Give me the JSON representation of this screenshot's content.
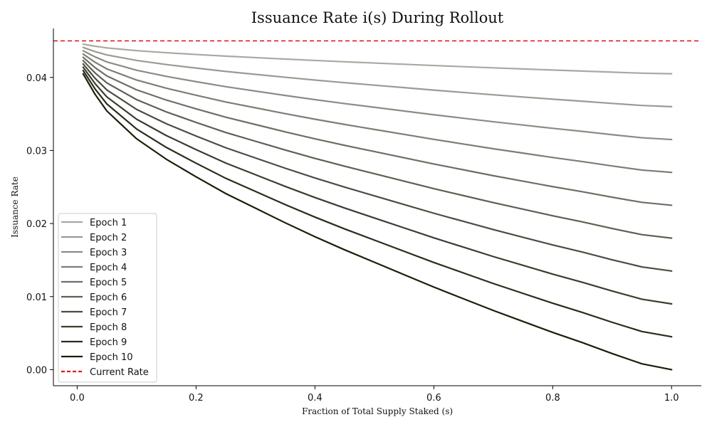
{
  "chart_data": {
    "type": "line",
    "title": "Issuance Rate i(s) During Rollout",
    "xlabel": "Fraction of Total Supply Staked (s)",
    "ylabel": "Issuance Rate",
    "xlim": [
      -0.04,
      1.05
    ],
    "ylim": [
      -0.0022,
      0.0467
    ],
    "x_ticks": [
      0.0,
      0.2,
      0.4,
      0.6,
      0.8,
      1.0
    ],
    "x_tick_labels": [
      "0.0",
      "0.2",
      "0.4",
      "0.6",
      "0.8",
      "1.0"
    ],
    "y_ticks": [
      0.0,
      0.01,
      0.02,
      0.03,
      0.04
    ],
    "y_tick_labels": [
      "0.00",
      "0.01",
      "0.02",
      "0.03",
      "0.04"
    ],
    "grid": false,
    "legend_position": "lower-left",
    "x": [
      0.01,
      0.03,
      0.05,
      0.075,
      0.1,
      0.15,
      0.2,
      0.25,
      0.3,
      0.35,
      0.4,
      0.45,
      0.5,
      0.55,
      0.6,
      0.65,
      0.7,
      0.75,
      0.8,
      0.85,
      0.9,
      0.95,
      1.0
    ],
    "series": [
      {
        "name": "Epoch 1",
        "color": "#a9a9a1",
        "values": [
          0.04455,
          0.04427,
          0.04404,
          0.04385,
          0.04366,
          0.04338,
          0.04314,
          0.04291,
          0.04271,
          0.04251,
          0.04232,
          0.04214,
          0.04197,
          0.0418,
          0.04163,
          0.04147,
          0.04131,
          0.04116,
          0.04101,
          0.04087,
          0.04072,
          0.04058,
          0.0405
        ]
      },
      {
        "name": "Epoch 2",
        "color": "#9b9b93",
        "values": [
          0.0441,
          0.04354,
          0.04308,
          0.0427,
          0.04232,
          0.04176,
          0.04128,
          0.04082,
          0.04042,
          0.04002,
          0.03964,
          0.03928,
          0.03894,
          0.0386,
          0.03826,
          0.03794,
          0.03762,
          0.03732,
          0.03702,
          0.03674,
          0.03644,
          0.03616,
          0.036
        ]
      },
      {
        "name": "Epoch 3",
        "color": "#8c8c84",
        "values": [
          0.04365,
          0.04281,
          0.04212,
          0.04155,
          0.04098,
          0.04014,
          0.03942,
          0.03873,
          0.03813,
          0.03753,
          0.03696,
          0.03642,
          0.03591,
          0.0354,
          0.03489,
          0.03441,
          0.03393,
          0.03348,
          0.03303,
          0.03261,
          0.03216,
          0.03174,
          0.0315
        ]
      },
      {
        "name": "Epoch 4",
        "color": "#7e7e75",
        "values": [
          0.0432,
          0.04208,
          0.04116,
          0.0404,
          0.03964,
          0.03852,
          0.03756,
          0.03664,
          0.03584,
          0.03504,
          0.03428,
          0.03356,
          0.03288,
          0.0322,
          0.03152,
          0.03088,
          0.03024,
          0.02964,
          0.02904,
          0.02848,
          0.02788,
          0.02732,
          0.027
        ]
      },
      {
        "name": "Epoch 5",
        "color": "#6f6f66",
        "values": [
          0.04275,
          0.04135,
          0.0402,
          0.03925,
          0.0383,
          0.0369,
          0.0357,
          0.03455,
          0.03355,
          0.03255,
          0.0316,
          0.0307,
          0.02985,
          0.029,
          0.02815,
          0.02735,
          0.02655,
          0.0258,
          0.02505,
          0.02435,
          0.0236,
          0.0229,
          0.0225
        ]
      },
      {
        "name": "Epoch 6",
        "color": "#5f5f55",
        "values": [
          0.0423,
          0.04062,
          0.03924,
          0.0381,
          0.03696,
          0.03528,
          0.03384,
          0.03246,
          0.03126,
          0.03006,
          0.02892,
          0.02784,
          0.02682,
          0.0258,
          0.02478,
          0.02382,
          0.02286,
          0.02196,
          0.02106,
          0.02022,
          0.01932,
          0.01848,
          0.018
        ]
      },
      {
        "name": "Epoch 7",
        "color": "#4c4c42",
        "values": [
          0.04185,
          0.03989,
          0.03828,
          0.03695,
          0.03562,
          0.03366,
          0.03198,
          0.03037,
          0.02897,
          0.02757,
          0.02624,
          0.02498,
          0.02379,
          0.0226,
          0.02141,
          0.02029,
          0.01917,
          0.01812,
          0.01707,
          0.01609,
          0.01504,
          0.01406,
          0.0135
        ]
      },
      {
        "name": "Epoch 8",
        "color": "#3c3c30",
        "values": [
          0.0414,
          0.03916,
          0.03732,
          0.0358,
          0.03428,
          0.03204,
          0.03012,
          0.02828,
          0.02668,
          0.02508,
          0.02356,
          0.02212,
          0.02076,
          0.0194,
          0.01804,
          0.01676,
          0.01548,
          0.01428,
          0.01308,
          0.01196,
          0.01076,
          0.00964,
          0.009
        ]
      },
      {
        "name": "Epoch 9",
        "color": "#2a2c1c",
        "values": [
          0.04095,
          0.03843,
          0.03636,
          0.03465,
          0.03294,
          0.03042,
          0.02826,
          0.02619,
          0.02439,
          0.02259,
          0.02088,
          0.01926,
          0.01773,
          0.0162,
          0.01467,
          0.01323,
          0.01179,
          0.01044,
          0.00909,
          0.00783,
          0.00648,
          0.00522,
          0.0045
        ]
      },
      {
        "name": "Epoch 10",
        "color": "#1a1f08",
        "values": [
          0.0405,
          0.0377,
          0.0354,
          0.0335,
          0.0316,
          0.0288,
          0.0264,
          0.0241,
          0.0221,
          0.0201,
          0.0182,
          0.0164,
          0.0147,
          0.013,
          0.0113,
          0.0097,
          0.0081,
          0.0066,
          0.0051,
          0.0037,
          0.0022,
          0.0008,
          0.0
        ]
      }
    ],
    "reference_lines": [
      {
        "name": "Current Rate",
        "y": 0.045,
        "color": "#e31a1c",
        "style": "dashed"
      }
    ]
  }
}
